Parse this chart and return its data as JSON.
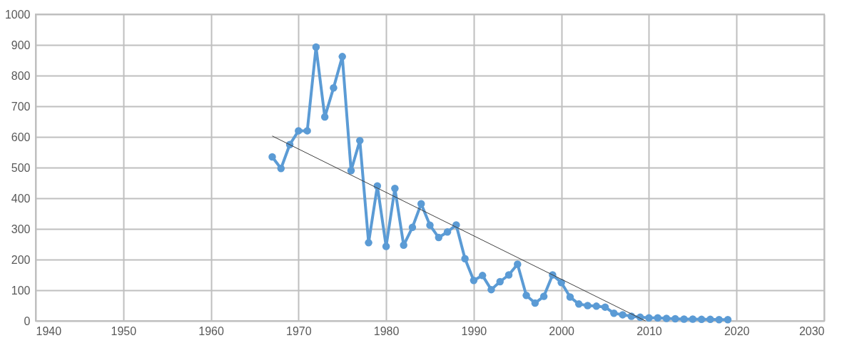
{
  "chart_data": {
    "type": "line",
    "marker": "circle",
    "grid": true,
    "xlim": [
      1940,
      2030
    ],
    "xticks": [
      1940,
      1950,
      1960,
      1970,
      1980,
      1990,
      2000,
      2010,
      2020,
      2030
    ],
    "ylim": [
      0,
      1000
    ],
    "yticks": [
      0,
      100,
      200,
      300,
      400,
      500,
      600,
      700,
      800,
      900,
      1000
    ],
    "series": [
      {
        "color": "#5b9bd5",
        "x": [
          1967,
          1968,
          1969,
          1970,
          1971,
          1972,
          1973,
          1974,
          1975,
          1976,
          1977,
          1978,
          1979,
          1980,
          1981,
          1982,
          1983,
          1984,
          1985,
          1986,
          1987,
          1988,
          1989,
          1990,
          1991,
          1992,
          1993,
          1994,
          1995,
          1996,
          1997,
          1998,
          1999,
          2000,
          2001,
          2002,
          2003,
          2004,
          2005,
          2006,
          2007,
          2008,
          2009,
          2010,
          2011,
          2012,
          2013,
          2014,
          2015,
          2016,
          2017,
          2018,
          2019
        ],
        "values": [
          535,
          497,
          575,
          620,
          620,
          893,
          665,
          760,
          862,
          490,
          588,
          255,
          440,
          243,
          432,
          247,
          305,
          382,
          312,
          272,
          290,
          313,
          203,
          132,
          148,
          102,
          128,
          150,
          185,
          83,
          58,
          80,
          150,
          125,
          78,
          55,
          50,
          48,
          45,
          25,
          20,
          15,
          12,
          10,
          10,
          8,
          7,
          6,
          6,
          5,
          5,
          4,
          4
        ]
      },
      {
        "type": "line",
        "color": "#404040",
        "marker": "none",
        "x": [
          1967,
          2009.6
        ],
        "values": [
          603,
          0
        ]
      }
    ]
  }
}
